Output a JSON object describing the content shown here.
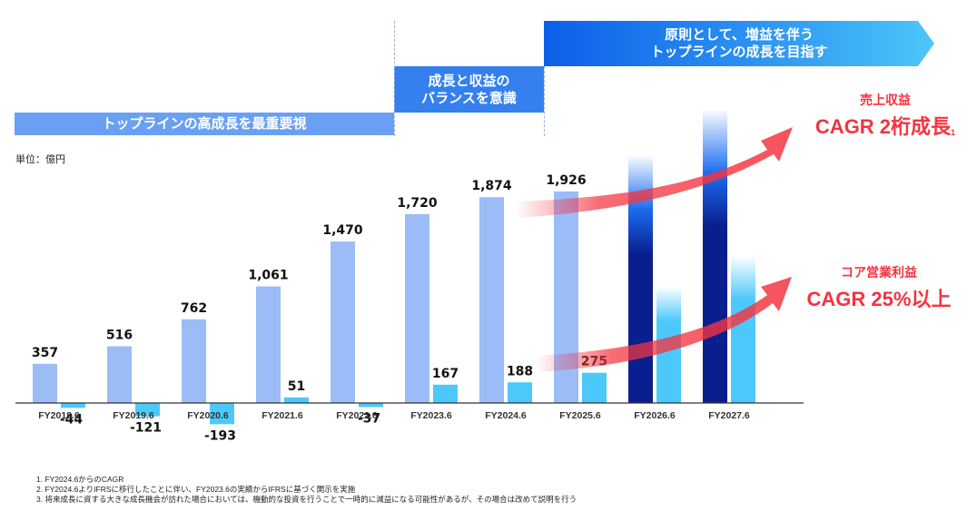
{
  "phases": [
    {
      "label": "トップラインの高成長を最重要視"
    },
    {
      "label_line1": "成長と収益の",
      "label_line2": "バランスを意識"
    },
    {
      "label_line1": "原則として、増益を伴う",
      "label_line2": "トップラインの成長を目指す"
    }
  ],
  "unit_label": "単位：億円",
  "callouts": {
    "revenue": {
      "title": "売上収益",
      "headline": "CAGR 2桁成長",
      "footnote_ref": "1"
    },
    "core_op": {
      "title": "コア営業利益",
      "headline": "CAGR 25%以上"
    }
  },
  "colors": {
    "revenue_actual": "#9bbcf7",
    "profit_actual": "#4cc8fb",
    "revenue_forecast": "#0a1f8f",
    "profit_forecast": "#4cc8fb",
    "arrow": "#f5333f",
    "phase1": "#6aa0f4",
    "phase2": "#3580ee"
  },
  "notes": [
    "1. FY2024.6からのCAGR",
    "2. FY2024.6よりIFRSに移行したことに伴い、FY2023.6の実績からIFRSに基づく開示を実施",
    "3. 将来成長に資する大きな成長機会が訪れた場合においては、機動的な投資を行うことで一時的に減益になる可能性があるが、その場合は改めて説明を行う"
  ],
  "chart_data": {
    "type": "bar",
    "title": "",
    "xlabel": "",
    "ylabel": "単位：億円",
    "categories": [
      "FY2018.6",
      "FY2019.6",
      "FY2020.6",
      "FY2021.6",
      "FY2022.6",
      "FY2023.6",
      "FY2024.6",
      "FY2025.6",
      "FY2026.6",
      "FY2027.6"
    ],
    "series": [
      {
        "name": "売上収益",
        "values": [
          357,
          516,
          762,
          1061,
          1470,
          1720,
          1874,
          1926,
          null,
          null
        ],
        "labels": [
          "357",
          "516",
          "762",
          "1,061",
          "1,470",
          "1,720",
          "1,874",
          "1,926",
          "",
          ""
        ]
      },
      {
        "name": "コア営業利益",
        "values": [
          -44,
          -121,
          -193,
          51,
          -37,
          167,
          188,
          275,
          null,
          null
        ],
        "labels": [
          "-44",
          "-121",
          "-193",
          "51",
          "-37",
          "167",
          "188",
          "275",
          "",
          ""
        ]
      }
    ],
    "forecast_categories": [
      "FY2026.6",
      "FY2027.6"
    ],
    "forecast_note": "FY2026.6–FY2027.6 shown as unlabelled illustrative bars (gradient), revenue target CAGR double-digit, core operating profit CAGR ≥25%",
    "grid": false,
    "legend": "none",
    "ylim": [
      -200,
      2700
    ]
  }
}
